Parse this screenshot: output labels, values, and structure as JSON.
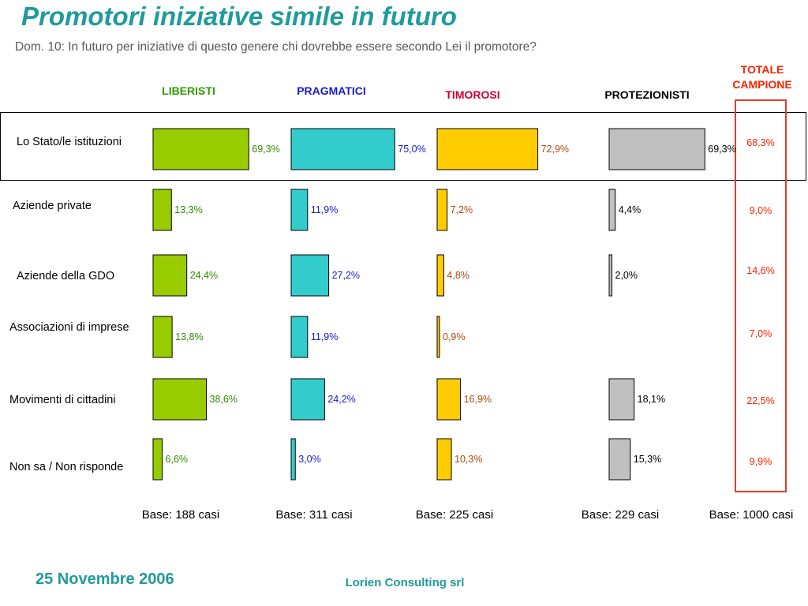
{
  "title": "Promotori iniziative simile in futuro",
  "subtitle": "Dom. 10: In futuro per iniziative di questo genere chi dovrebbe essere secondo Lei il promotore?",
  "footer": {
    "date": "25 Novembre 2006",
    "company": "Lorien Consulting srl"
  },
  "colors": {
    "title": "#1f9b9b",
    "total": "#ff2200"
  },
  "chart_data": {
    "type": "bar",
    "orientation": "horizontal",
    "unit": "%",
    "categories": [
      "Lo Stato/le istituzioni",
      "Aziende private",
      "Aziende della GDO",
      "Associazioni di imprese",
      "Movimenti di cittadini",
      "Non sa / Non risponde"
    ],
    "series": [
      {
        "name": "LIBERISTI",
        "color": "#99cc00",
        "label_color": "#2e8b00",
        "header_color": "#339900",
        "values": [
          69.3,
          13.3,
          24.4,
          13.8,
          38.6,
          6.6
        ],
        "labels": [
          "69,3%",
          "13,3%",
          "24,4%",
          "13,8%",
          "38,6%",
          "6,6%"
        ],
        "base": "Base: 188 casi"
      },
      {
        "name": "PRAGMATICI",
        "color": "#33cccc",
        "label_color": "#1a1acc",
        "header_color": "#1a1acc",
        "values": [
          75.0,
          11.9,
          27.2,
          11.9,
          24.2,
          3.0
        ],
        "labels": [
          "75,0%",
          "11,9%",
          "27,2%",
          "11,9%",
          "24,2%",
          "3,0%"
        ],
        "base": "Base: 311 casi"
      },
      {
        "name": "TIMOROSI",
        "color": "#ffcc00",
        "label_color": "#b04a10",
        "header_color": "#cc0033",
        "values": [
          72.9,
          7.2,
          4.8,
          0.9,
          16.9,
          10.3
        ],
        "labels": [
          "72,9%",
          "7,2%",
          "4,8%",
          "0,9%",
          "16,9%",
          "10,3%"
        ],
        "base": "Base: 225 casi"
      },
      {
        "name": "PROTEZIONISTI",
        "color": "#c0c0c0",
        "label_color": "#000000",
        "header_color": "#000000",
        "values": [
          69.3,
          4.4,
          2.0,
          null,
          18.1,
          15.3
        ],
        "labels": [
          "69,3%",
          "4,4%",
          "2,0%",
          null,
          "18,1%",
          "15,3%"
        ],
        "base": "Base: 229 casi"
      }
    ],
    "total": {
      "name": "TOTALE CAMPIONE",
      "name_lines": [
        "TOTALE",
        "CAMPIONE"
      ],
      "values": [
        68.3,
        9.0,
        14.6,
        7.0,
        22.5,
        9.9
      ],
      "labels": [
        "68,3%",
        "9,0%",
        "14,6%",
        "7,0%",
        "22,5%",
        "9,9%"
      ],
      "base": "Base: 1000 casi"
    }
  }
}
